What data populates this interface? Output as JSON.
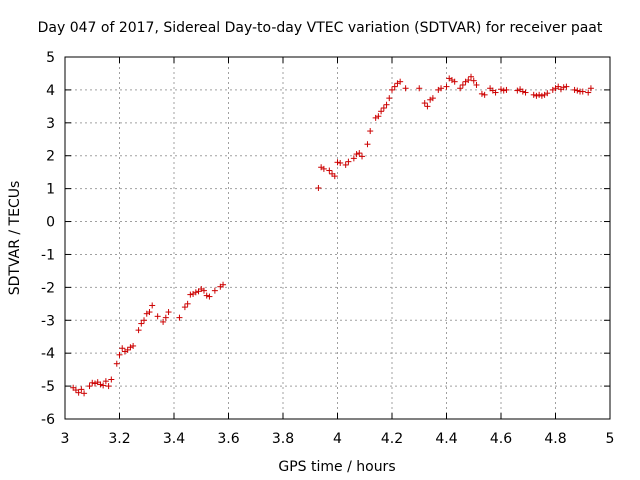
{
  "chart_data": {
    "type": "scatter",
    "title": "Day 047 of 2017, Sidereal Day-to-day VTEC variation (SDTVAR) for receiver paat",
    "xlabel": "GPS time / hours",
    "ylabel": "SDTVAR / TECUs",
    "xlim": [
      3,
      5
    ],
    "ylim": [
      -6,
      5
    ],
    "xticks": [
      "3",
      "3.2",
      "3.4",
      "3.6",
      "3.8",
      "4",
      "4.2",
      "4.4",
      "4.6",
      "4.8",
      "5"
    ],
    "yticks": [
      "-6",
      "-5",
      "-4",
      "-3",
      "-2",
      "-1",
      "0",
      "1",
      "2",
      "3",
      "4",
      "5"
    ],
    "grid": true,
    "marker": "+",
    "series": [
      {
        "name": "SDTVAR",
        "color": "#cc0000",
        "points": [
          [
            3.03,
            -5.05
          ],
          [
            3.04,
            -5.12
          ],
          [
            3.05,
            -5.2
          ],
          [
            3.06,
            -5.1
          ],
          [
            3.07,
            -5.22
          ],
          [
            3.09,
            -5.0
          ],
          [
            3.1,
            -4.9
          ],
          [
            3.11,
            -4.92
          ],
          [
            3.12,
            -4.88
          ],
          [
            3.13,
            -4.95
          ],
          [
            3.14,
            -4.98
          ],
          [
            3.15,
            -4.85
          ],
          [
            3.16,
            -5.0
          ],
          [
            3.17,
            -4.8
          ],
          [
            3.19,
            -4.32
          ],
          [
            3.2,
            -4.05
          ],
          [
            3.21,
            -3.85
          ],
          [
            3.22,
            -3.95
          ],
          [
            3.23,
            -3.9
          ],
          [
            3.24,
            -3.82
          ],
          [
            3.25,
            -3.78
          ],
          [
            3.27,
            -3.3
          ],
          [
            3.28,
            -3.1
          ],
          [
            3.29,
            -3.0
          ],
          [
            3.3,
            -2.8
          ],
          [
            3.31,
            -2.75
          ],
          [
            3.32,
            -2.55
          ],
          [
            3.34,
            -2.88
          ],
          [
            3.36,
            -3.05
          ],
          [
            3.37,
            -2.92
          ],
          [
            3.38,
            -2.75
          ],
          [
            3.42,
            -2.92
          ],
          [
            3.44,
            -2.6
          ],
          [
            3.45,
            -2.5
          ],
          [
            3.46,
            -2.22
          ],
          [
            3.47,
            -2.2
          ],
          [
            3.48,
            -2.15
          ],
          [
            3.49,
            -2.12
          ],
          [
            3.5,
            -2.05
          ],
          [
            3.51,
            -2.1
          ],
          [
            3.52,
            -2.25
          ],
          [
            3.53,
            -2.28
          ],
          [
            3.55,
            -2.1
          ],
          [
            3.57,
            -1.98
          ],
          [
            3.58,
            -1.92
          ],
          [
            3.93,
            1.02
          ],
          [
            3.94,
            1.65
          ],
          [
            3.95,
            1.6
          ],
          [
            3.97,
            1.55
          ],
          [
            3.98,
            1.45
          ],
          [
            3.99,
            1.38
          ],
          [
            4.0,
            1.8
          ],
          [
            4.01,
            1.78
          ],
          [
            4.03,
            1.72
          ],
          [
            4.04,
            1.82
          ],
          [
            4.06,
            1.92
          ],
          [
            4.07,
            2.05
          ],
          [
            4.08,
            2.08
          ],
          [
            4.09,
            1.98
          ],
          [
            4.11,
            2.35
          ],
          [
            4.12,
            2.75
          ],
          [
            4.14,
            3.15
          ],
          [
            4.15,
            3.2
          ],
          [
            4.16,
            3.35
          ],
          [
            4.17,
            3.45
          ],
          [
            4.18,
            3.55
          ],
          [
            4.19,
            3.75
          ],
          [
            4.2,
            4.0
          ],
          [
            4.21,
            4.1
          ],
          [
            4.22,
            4.2
          ],
          [
            4.23,
            4.25
          ],
          [
            4.25,
            4.05
          ],
          [
            4.3,
            4.05
          ],
          [
            4.32,
            3.6
          ],
          [
            4.33,
            3.5
          ],
          [
            4.34,
            3.7
          ],
          [
            4.35,
            3.75
          ],
          [
            4.37,
            4.0
          ],
          [
            4.38,
            4.05
          ],
          [
            4.4,
            4.1
          ],
          [
            4.41,
            4.35
          ],
          [
            4.42,
            4.3
          ],
          [
            4.43,
            4.25
          ],
          [
            4.45,
            4.05
          ],
          [
            4.46,
            4.15
          ],
          [
            4.47,
            4.25
          ],
          [
            4.48,
            4.3
          ],
          [
            4.49,
            4.4
          ],
          [
            4.5,
            4.28
          ],
          [
            4.51,
            4.15
          ],
          [
            4.53,
            3.88
          ],
          [
            4.54,
            3.85
          ],
          [
            4.56,
            4.05
          ],
          [
            4.57,
            3.98
          ],
          [
            4.58,
            3.92
          ],
          [
            4.6,
            4.02
          ],
          [
            4.61,
            3.98
          ],
          [
            4.62,
            4.0
          ],
          [
            4.66,
            3.98
          ],
          [
            4.67,
            4.02
          ],
          [
            4.68,
            3.95
          ],
          [
            4.69,
            3.92
          ],
          [
            4.72,
            3.85
          ],
          [
            4.73,
            3.82
          ],
          [
            4.74,
            3.85
          ],
          [
            4.75,
            3.82
          ],
          [
            4.76,
            3.85
          ],
          [
            4.77,
            3.9
          ],
          [
            4.79,
            4.0
          ],
          [
            4.8,
            4.05
          ],
          [
            4.81,
            4.1
          ],
          [
            4.82,
            4.02
          ],
          [
            4.83,
            4.08
          ],
          [
            4.84,
            4.1
          ],
          [
            4.87,
            4.0
          ],
          [
            4.88,
            3.98
          ],
          [
            4.89,
            3.95
          ],
          [
            4.9,
            3.95
          ],
          [
            4.92,
            3.92
          ],
          [
            4.93,
            4.05
          ]
        ]
      }
    ]
  }
}
